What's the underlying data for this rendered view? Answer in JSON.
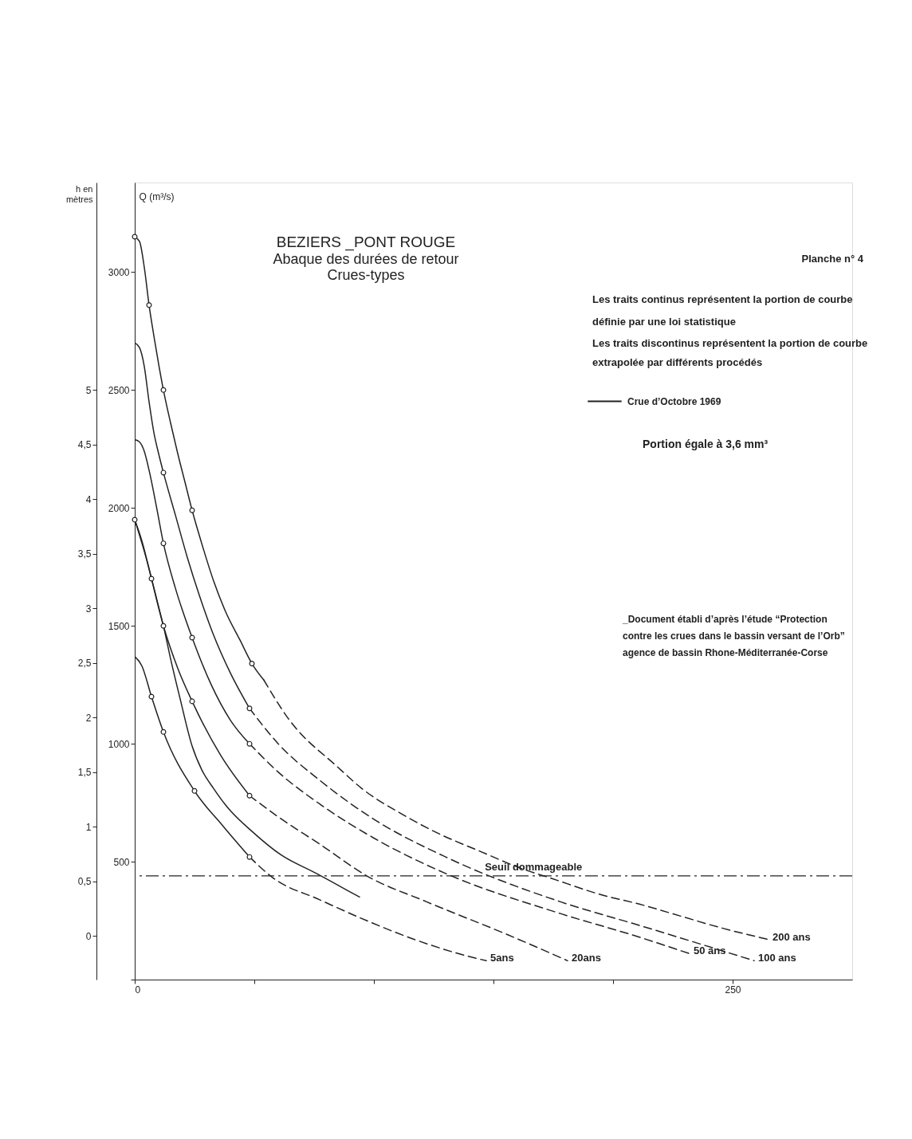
{
  "chart_data": {
    "type": "line",
    "title": "BEZIERS _PONT ROUGE",
    "subtitle": "Abaque des durées de retour\nCrues-types",
    "ylabel": "Q (m³/s)",
    "y2label": "h en mètres",
    "xlim": [
      0,
      300
    ],
    "xticks": [
      0,
      {
        "value": 50,
        "label": null
      },
      {
        "value": 100,
        "label": null
      },
      {
        "value": 150,
        "label": null
      },
      {
        "value": 200,
        "label": null
      },
      250
    ],
    "ylim": [
      0,
      3380
    ],
    "yticks": [
      {
        "value": 0,
        "label": null
      },
      500,
      1000,
      1500,
      2000,
      2500,
      3000
    ],
    "y2lim": [
      -0.4,
      6.9
    ],
    "y2ticks": [
      0,
      {
        "value": 0.5,
        "label": "0,5"
      },
      1,
      {
        "value": 1.5,
        "label": "1,5"
      },
      2,
      {
        "value": 2.5,
        "label": "2,5"
      },
      3,
      {
        "value": 3.5,
        "label": "3,5"
      },
      4,
      {
        "value": 4.5,
        "label": "4,5"
      },
      5
    ],
    "legend": "top right",
    "series": [
      {
        "line_style": "solid",
        "color": "#222222",
        "x": [
          0,
          2,
          4,
          6,
          8,
          10,
          12,
          15,
          18,
          21,
          24,
          28,
          33,
          38,
          44,
          49,
          54
        ],
        "values": [
          3150,
          3130,
          3020,
          2860,
          2730,
          2610,
          2500,
          2360,
          2230,
          2110,
          1990,
          1850,
          1690,
          1560,
          1440,
          1340,
          1270
        ]
      },
      {
        "line_style": "dashed",
        "name": "200 ans",
        "color": "#222222",
        "x": [
          54,
          64,
          85,
          95,
          112,
          129,
          143,
          162,
          174,
          195,
          211,
          228,
          245,
          265
        ],
        "values": [
          1270,
          1110,
          900,
          810,
          700,
          610,
          550,
          470,
          430,
          360,
          320,
          270,
          220,
          170
        ]
      },
      {
        "type": "scatter",
        "marker": "circle",
        "color": "#222222",
        "x": [
          0,
          6,
          12,
          24,
          49
        ],
        "values": [
          3150,
          2860,
          2500,
          1990,
          1340
        ]
      },
      {
        "line_style": "solid",
        "color": "#222222",
        "x": [
          0,
          2,
          4,
          6,
          8,
          10,
          12,
          17,
          22,
          27,
          33,
          40,
          48
        ],
        "values": [
          2700,
          2680,
          2600,
          2450,
          2320,
          2230,
          2150,
          1970,
          1790,
          1630,
          1460,
          1300,
          1150
        ]
      },
      {
        "line_style": "dashed",
        "name": "100 ans",
        "color": "#222222",
        "x": [
          48,
          60,
          78,
          100,
          130,
          178,
          211,
          259
        ],
        "values": [
          1150,
          1000,
          840,
          680,
          520,
          330,
          230,
          80
        ]
      },
      {
        "type": "scatter",
        "marker": "circle",
        "color": "#222222",
        "x": [
          12,
          48
        ],
        "values": [
          2150,
          1150
        ]
      },
      {
        "line_style": "solid",
        "color": "#222222",
        "x": [
          0,
          2,
          4,
          6,
          9,
          12,
          17,
          24,
          32,
          40,
          48
        ],
        "values": [
          2290,
          2280,
          2240,
          2160,
          2010,
          1850,
          1660,
          1450,
          1250,
          1100,
          1000
        ]
      },
      {
        "line_style": "dashed",
        "name": "50 ans",
        "color": "#222222",
        "x": [
          48,
          60,
          78,
          100,
          130,
          178,
          211,
          232
        ],
        "values": [
          1000,
          880,
          740,
          600,
          450,
          280,
          180,
          110
        ]
      },
      {
        "type": "scatter",
        "marker": "circle",
        "color": "#222222",
        "x": [
          12,
          24,
          48
        ],
        "values": [
          1850,
          1450,
          1000
        ]
      },
      {
        "line_style": "solid",
        "color": "#222222",
        "x": [
          0,
          3,
          7,
          12,
          18,
          24,
          36,
          48
        ],
        "values": [
          1950,
          1860,
          1700,
          1500,
          1320,
          1180,
          950,
          780
        ]
      },
      {
        "line_style": "dashed",
        "name": "20ans",
        "color": "#222222",
        "x": [
          48,
          60,
          78,
          97,
          122,
          156,
          181
        ],
        "values": [
          780,
          690,
          570,
          440,
          330,
          190,
          80
        ]
      },
      {
        "type": "scatter",
        "marker": "circle",
        "color": "#222222",
        "x": [
          0,
          7,
          12,
          24,
          48
        ],
        "values": [
          1950,
          1700,
          1500,
          1180,
          780
        ]
      },
      {
        "line_style": "solid",
        "color": "#222222",
        "x": [
          0,
          3,
          7,
          12,
          25,
          37,
          48
        ],
        "values": [
          1370,
          1330,
          1200,
          1050,
          800,
          650,
          520
        ]
      },
      {
        "line_style": "dashed",
        "name": "5ans",
        "color": "#222222",
        "x": [
          48,
          58,
          77,
          97,
          117,
          139,
          147
        ],
        "values": [
          520,
          430,
          340,
          250,
          170,
          100,
          80
        ]
      },
      {
        "type": "scatter",
        "marker": "circle",
        "color": "#222222",
        "x": [
          7,
          12,
          25,
          48
        ],
        "values": [
          1200,
          1050,
          800,
          520
        ]
      },
      {
        "line_style": "solid",
        "name": "Crue d’Octobre 1969",
        "color": "#222222",
        "x": [
          0,
          5,
          10,
          12,
          15,
          19,
          24,
          28,
          33,
          38,
          50,
          61,
          76,
          85,
          94
        ],
        "values": [
          1950,
          1780,
          1580,
          1500,
          1360,
          1190,
          990,
          890,
          810,
          740,
          620,
          530,
          450,
          400,
          350
        ]
      }
    ],
    "ref_lines": [
      {
        "axis": "y",
        "value": 440,
        "label": "Seuil dommageable",
        "line_style": "dashed",
        "color": "#222222"
      }
    ],
    "annotations": [
      "Planche n° 4",
      "Les traits continus représentent la portion de courbe\ndéfinie par une loi statistique",
      "Les traits discontinus représentent la portion de courbe\nextrapolée par différents procédés",
      "Portion égale à 3,6 mm³",
      "_Document établi d’après l’étude “Protection\ncontre les crues dans le bassin versant de l’Orb”\nagence de bassin Rhone-Méditerranée-Corse"
    ]
  }
}
